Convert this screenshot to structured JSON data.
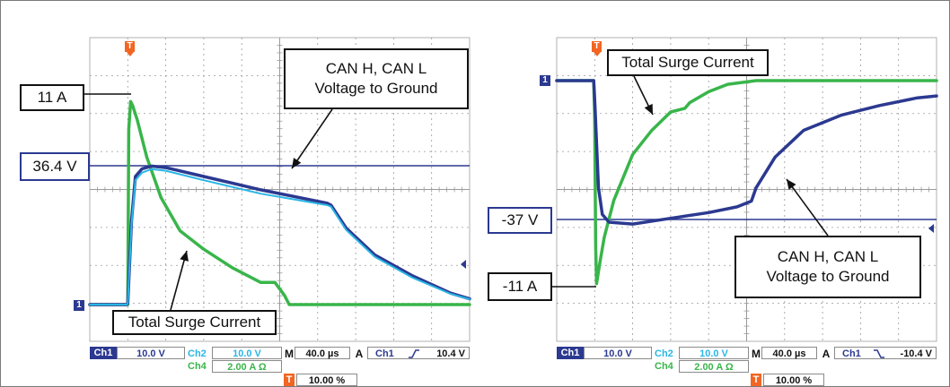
{
  "colors": {
    "ch1": "#2b3990",
    "ch2": "#29b6e6",
    "ch4": "#39b54a",
    "trigger": "#f26522",
    "grid": "#9a9a9a"
  },
  "chart_data": [
    {
      "type": "line",
      "title": "",
      "x_unit": "µs",
      "x_per_div": 40.0,
      "xlim": [
        -40,
        360
      ],
      "grid": true,
      "series": [
        {
          "name": "Ch1",
          "y_per_div_label": "10.0 V",
          "x": [
            -40,
            -1,
            0,
            4,
            8,
            15,
            25,
            40,
            80,
            140,
            210,
            214,
            230,
            260,
            300,
            340,
            360
          ],
          "y": [
            0,
            0,
            0.3,
            22,
            33.5,
            35.5,
            36.2,
            35.8,
            33.5,
            30,
            26.5,
            26,
            20,
            13,
            7.5,
            3,
            1.5
          ]
        },
        {
          "name": "Ch2",
          "y_per_div_label": "10.0 V",
          "x": [
            -40,
            -1,
            0,
            4,
            8,
            15,
            25,
            40,
            80,
            140,
            210,
            214,
            230,
            260,
            300,
            340,
            360
          ],
          "y": [
            0,
            0,
            0.3,
            21,
            32.5,
            34.5,
            35.4,
            35,
            32.5,
            29,
            26,
            25.6,
            19.5,
            12.5,
            7,
            2.8,
            1.4
          ]
        },
        {
          "name": "Ch4",
          "y_per_div_label": "2.00 A Ω",
          "x": [
            -40,
            -1,
            0,
            1,
            3,
            5,
            10,
            20,
            35,
            55,
            80,
            110,
            140,
            155,
            165,
            170,
            200,
            360
          ],
          "y": [
            0,
            0,
            0,
            9.5,
            11,
            10.8,
            10,
            8,
            5.8,
            4,
            3,
            2,
            1.2,
            1.2,
            0.5,
            0,
            0,
            0
          ]
        }
      ],
      "annotations": [
        {
          "label": "11 A"
        },
        {
          "label": "36.4 V"
        },
        {
          "label": "CAN H, CAN L\nVoltage to Ground"
        },
        {
          "label": "Total Surge Current"
        }
      ]
    },
    {
      "type": "line",
      "title": "",
      "x_unit": "µs",
      "x_per_div": 40.0,
      "xlim": [
        -40,
        360
      ],
      "grid": true,
      "series": [
        {
          "name": "Ch1",
          "y_per_div_label": "10.0 V",
          "x": [
            -40,
            -1,
            0,
            4,
            8,
            15,
            40,
            80,
            120,
            150,
            165,
            170,
            190,
            220,
            260,
            300,
            340,
            360
          ],
          "y": [
            0,
            0,
            -5,
            -28,
            -35,
            -37,
            -37.5,
            -36,
            -34.5,
            -33,
            -31.5,
            -28,
            -20,
            -13,
            -9,
            -6.5,
            -4.5,
            -4
          ]
        },
        {
          "name": "Ch4",
          "y_per_div_label": "2.00 A Ω",
          "x": [
            -40,
            -1,
            0,
            1,
            2,
            5,
            10,
            20,
            40,
            60,
            80,
            95,
            100,
            120,
            140,
            170,
            200,
            360
          ],
          "y": [
            0,
            0,
            -2,
            -9,
            -11,
            -10,
            -8.5,
            -6.5,
            -4,
            -2.7,
            -1.7,
            -1.5,
            -1.2,
            -0.6,
            -0.2,
            0,
            0,
            0
          ]
        }
      ],
      "annotations": [
        {
          "label": "Total Surge Current"
        },
        {
          "label": "-37 V"
        },
        {
          "label": "CAN H, CAN L\nVoltage to Ground"
        },
        {
          "label": "-11 A"
        }
      ]
    }
  ],
  "panels": [
    {
      "markers": {
        "trigger": "T",
        "channel": "1"
      },
      "labels": {
        "current_peak": "11 A",
        "voltage_level": "36.4 V",
        "voltage_callout_1": "CAN H, CAN L",
        "voltage_callout_2": "Voltage to Ground",
        "current_callout": "Total Surge Current"
      },
      "status": {
        "ch1": "Ch1",
        "ch1_scale": "10.0 V",
        "ch2": "Ch2",
        "ch2_scale": "10.0 V",
        "ch4": "Ch4",
        "ch4_scale": "2.00 A Ω",
        "m": "M",
        "timebase": "40.0 µs",
        "a": "A",
        "trig_src": "Ch1",
        "slope_icon": "rising-edge-icon",
        "trig_level": "10.4 V",
        "t": "T",
        "trig_pos": "10.00 %"
      }
    },
    {
      "markers": {
        "trigger": "T",
        "channel": "1"
      },
      "labels": {
        "current_callout": "Total Surge Current",
        "voltage_level": "-37 V",
        "voltage_callout_1": "CAN H, CAN L",
        "voltage_callout_2": "Voltage to Ground",
        "current_peak": "-11 A"
      },
      "status": {
        "ch1": "Ch1",
        "ch1_scale": "10.0 V",
        "ch2": "Ch2",
        "ch2_scale": "10.0 V",
        "ch4": "Ch4",
        "ch4_scale": "2.00 A Ω",
        "m": "M",
        "timebase": "40.0 µs",
        "a": "A",
        "trig_src": "Ch1",
        "slope_icon": "falling-edge-icon",
        "trig_level": "-10.4 V",
        "t": "T",
        "trig_pos": "10.00 %"
      }
    }
  ]
}
